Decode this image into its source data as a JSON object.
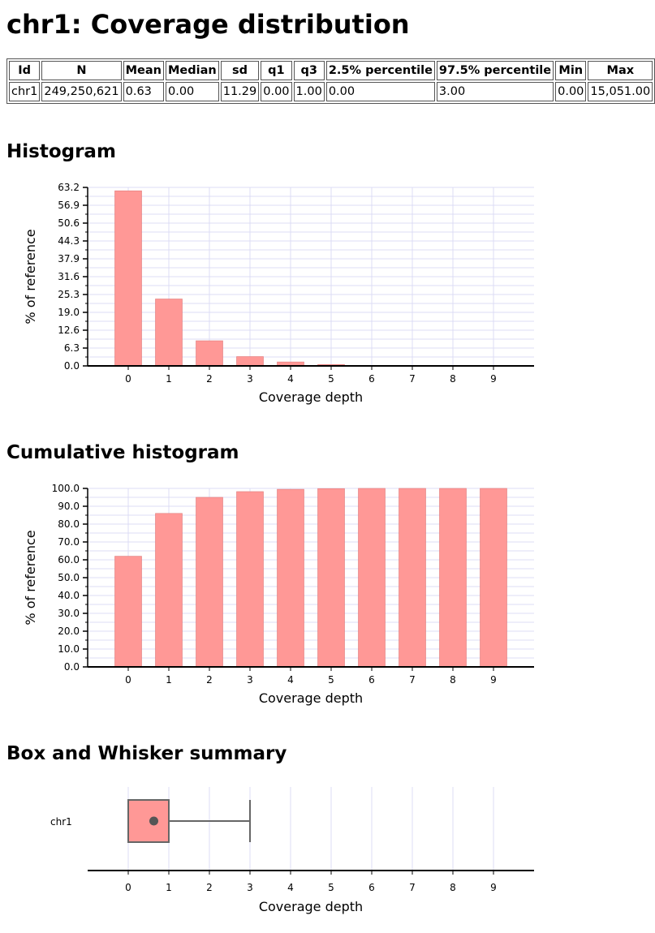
{
  "page": {
    "title": "chr1: Coverage distribution"
  },
  "table": {
    "headers": [
      "Id",
      "N",
      "Mean",
      "Median",
      "sd",
      "q1",
      "q3",
      "2.5% percentile",
      "97.5% percentile",
      "Min",
      "Max"
    ],
    "rows": [
      [
        "chr1",
        "249,250,621",
        "0.63",
        "0.00",
        "11.29",
        "0.00",
        "1.00",
        "0.00",
        "3.00",
        "0.00",
        "15,051.00"
      ]
    ]
  },
  "sections": {
    "histogram": "Histogram",
    "cumulative": "Cumulative histogram",
    "boxplot": "Box and Whisker summary"
  },
  "colors": {
    "bar": "#ff9896",
    "bar_stroke": "#e07b7a",
    "grid": "#dcdcf4",
    "box_stroke": "#666666",
    "mean_dot": "#555555"
  },
  "chart_data": [
    {
      "type": "bar",
      "title": "Histogram",
      "categories": [
        "0",
        "1",
        "2",
        "3",
        "4",
        "5",
        "6",
        "7",
        "8",
        "9"
      ],
      "values": [
        62.0,
        23.7,
        8.9,
        3.3,
        1.4,
        0.5,
        0.2,
        0.1,
        0.1,
        0.05
      ],
      "xlabel": "Coverage depth",
      "ylabel": "% of reference",
      "ylim": [
        0,
        63.2
      ],
      "yticks": [
        "0.0",
        "6.3",
        "12.6",
        "19.0",
        "25.3",
        "31.6",
        "37.9",
        "44.3",
        "50.6",
        "56.9",
        "63.2"
      ],
      "grid": true
    },
    {
      "type": "bar",
      "title": "Cumulative histogram",
      "categories": [
        "0",
        "1",
        "2",
        "3",
        "4",
        "5",
        "6",
        "7",
        "8",
        "9"
      ],
      "values": [
        62.0,
        86.0,
        95.0,
        98.2,
        99.5,
        99.9,
        100.0,
        100.0,
        100.0,
        100.0
      ],
      "xlabel": "Coverage depth",
      "ylabel": "% of reference",
      "ylim": [
        0,
        100
      ],
      "yticks": [
        "0.0",
        "10.0",
        "20.0",
        "30.0",
        "40.0",
        "50.0",
        "60.0",
        "70.0",
        "80.0",
        "90.0",
        "100.0"
      ],
      "grid": true
    },
    {
      "type": "box",
      "title": "Box and Whisker summary",
      "series": [
        {
          "name": "chr1",
          "low": 0,
          "q1": 0,
          "q3": 1,
          "high": 3,
          "mean": 0.63
        }
      ],
      "xticks": [
        "0",
        "1",
        "2",
        "3",
        "4",
        "5",
        "6",
        "7",
        "8",
        "9"
      ],
      "xlabel": "Coverage depth",
      "grid": true
    }
  ]
}
